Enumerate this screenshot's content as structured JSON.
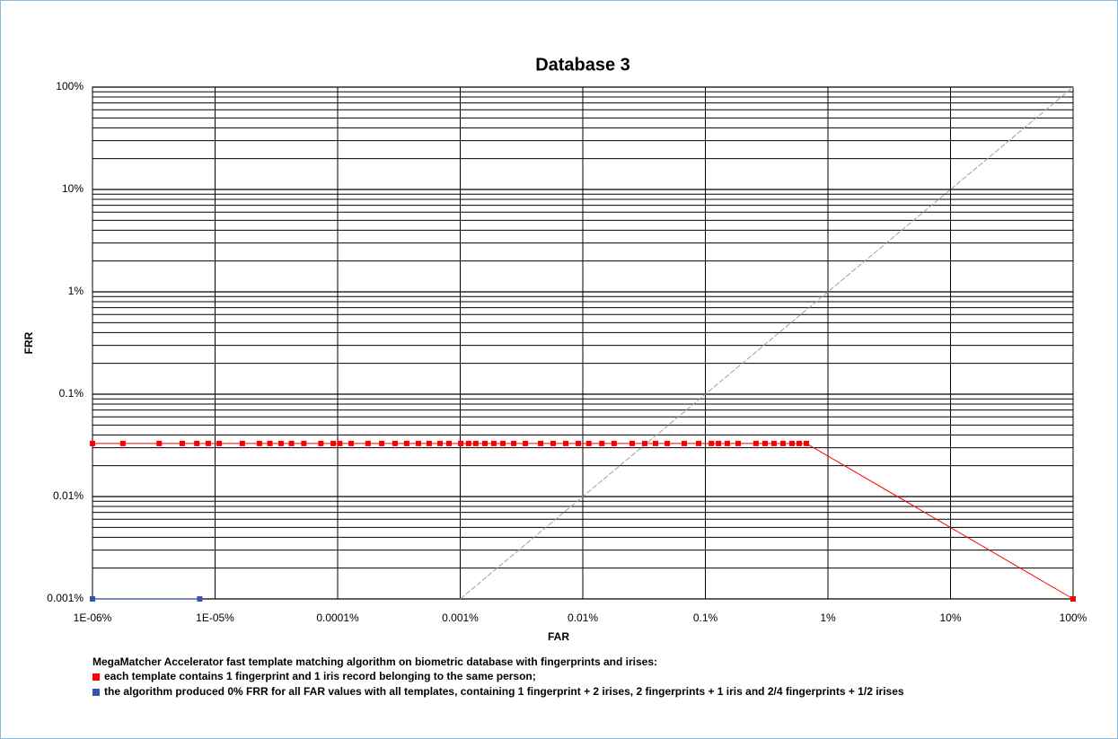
{
  "chart_data": {
    "type": "line",
    "title": "Database 3",
    "xlabel": "FAR",
    "ylabel": "FRR",
    "log_x": true,
    "log_y": true,
    "grid": true,
    "xlim": [
      1e-06,
      100
    ],
    "ylim": [
      0.001,
      100
    ],
    "xticks": [
      {
        "value": 1e-06,
        "label": "1E-06%"
      },
      {
        "value": 1e-05,
        "label": "1E-05%"
      },
      {
        "value": 0.0001,
        "label": "0.0001%"
      },
      {
        "value": 0.001,
        "label": "0.001%"
      },
      {
        "value": 0.01,
        "label": "0.01%"
      },
      {
        "value": 0.1,
        "label": "0.1%"
      },
      {
        "value": 1,
        "label": "1%"
      },
      {
        "value": 10,
        "label": "10%"
      },
      {
        "value": 100,
        "label": "100%"
      }
    ],
    "yticks": [
      {
        "value": 0.001,
        "label": "0.001%"
      },
      {
        "value": 0.01,
        "label": "0.01%"
      },
      {
        "value": 0.1,
        "label": "0.1%"
      },
      {
        "value": 1,
        "label": "1%"
      },
      {
        "value": 10,
        "label": "10%"
      },
      {
        "value": 100,
        "label": "100%"
      }
    ],
    "yminorticks": [
      0.002,
      0.003,
      0.004,
      0.005,
      0.006,
      0.007,
      0.008,
      0.009,
      0.02,
      0.03,
      0.04,
      0.05,
      0.06,
      0.07,
      0.08,
      0.09,
      0.2,
      0.3,
      0.4,
      0.5,
      0.6,
      0.7,
      0.8,
      0.9,
      2,
      3,
      4,
      5,
      6,
      7,
      8,
      9,
      20,
      30,
      40,
      50,
      60,
      70,
      80,
      90
    ],
    "caption": "MegaMatcher Accelerator fast template matching algorithm on biometric database with fingerprints and irises:",
    "reference_line": {
      "color": "#a0a0a0",
      "x": [
        0.001,
        100
      ],
      "y": [
        0.001,
        100
      ]
    },
    "series": [
      {
        "name": "each template contains 1 fingerprint and 1 iris record belonging to the same person;",
        "color": "#ff0000",
        "x": [
          1e-06,
          1.77e-06,
          3.5e-06,
          5.4e-06,
          7.1e-06,
          8.8e-06,
          1.08e-05,
          1.67e-05,
          2.3e-05,
          2.8e-05,
          3.45e-05,
          4.2e-05,
          5.3e-05,
          7.3e-05,
          9.2e-05,
          0.000104,
          0.000129,
          0.000177,
          0.000229,
          0.000294,
          0.000366,
          0.000456,
          0.000558,
          0.000684,
          0.00081,
          0.00101,
          0.00117,
          0.00134,
          0.00159,
          0.00188,
          0.00223,
          0.00273,
          0.0034,
          0.00453,
          0.00573,
          0.00726,
          0.00919,
          0.0112,
          0.0143,
          0.018,
          0.0253,
          0.032,
          0.0392,
          0.0489,
          0.0673,
          0.0881,
          0.112,
          0.128,
          0.151,
          0.185,
          0.259,
          0.307,
          0.363,
          0.43,
          0.509,
          0.583,
          0.667,
          100
        ],
        "values": [
          0.033,
          0.033,
          0.033,
          0.033,
          0.033,
          0.033,
          0.033,
          0.033,
          0.033,
          0.033,
          0.033,
          0.033,
          0.033,
          0.033,
          0.033,
          0.033,
          0.033,
          0.033,
          0.033,
          0.033,
          0.033,
          0.033,
          0.033,
          0.033,
          0.033,
          0.033,
          0.033,
          0.033,
          0.033,
          0.033,
          0.033,
          0.033,
          0.033,
          0.033,
          0.033,
          0.033,
          0.033,
          0.033,
          0.033,
          0.033,
          0.033,
          0.033,
          0.033,
          0.033,
          0.033,
          0.033,
          0.033,
          0.033,
          0.033,
          0.033,
          0.033,
          0.033,
          0.033,
          0.033,
          0.033,
          0.033,
          0.033,
          0.001
        ]
      },
      {
        "name": "the algorithm produced 0% FRR for all FAR values with all templates, containing 1 fingerprint + 2 irises, 2 fingerprints + 1 iris and 2/4 fingerprints + 1/2 irises",
        "color": "#3355aa",
        "x": [
          1e-06,
          7.5e-06
        ],
        "values": [
          0.001,
          0.001
        ]
      }
    ]
  }
}
